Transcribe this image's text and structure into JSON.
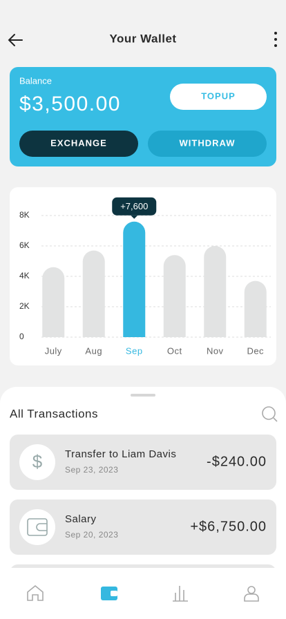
{
  "header": {
    "title": "Your Wallet"
  },
  "wallet": {
    "label": "Balance",
    "balance": "$3,500.00",
    "buttons": {
      "topup": "TOPUP",
      "exchange": "EXCHANGE",
      "withdraw": "WITHDRAW"
    }
  },
  "chart_data": {
    "type": "bar",
    "categories": [
      "July",
      "Aug",
      "Sep",
      "Oct",
      "Nov",
      "Dec"
    ],
    "values": [
      4600,
      5700,
      7600,
      5400,
      6000,
      3700
    ],
    "value_labels": [
      null,
      null,
      "+7,600",
      null,
      null,
      null
    ],
    "colors": [
      "#e2e3e3",
      "#e2e3e3",
      "#35b8e0",
      "#e2e3e3",
      "#e2e3e3",
      "#e2e3e3"
    ],
    "ylim": [
      0,
      8000
    ],
    "yticks": [
      0,
      {
        "value": 2000,
        "label": "2K"
      },
      {
        "value": 4000,
        "label": "4K"
      },
      {
        "value": 6000,
        "label": "6K"
      },
      {
        "value": 8000,
        "label": "8K"
      }
    ],
    "grid": true
  },
  "transactions": {
    "title": "All Transactions",
    "items": [
      {
        "name": "Transfer to Liam Davis",
        "date": "Sep 23, 2023",
        "amount": "-$240.00"
      },
      {
        "name": "Salary",
        "date": "Sep 20, 2023",
        "amount": "+$6,750.00"
      }
    ]
  }
}
